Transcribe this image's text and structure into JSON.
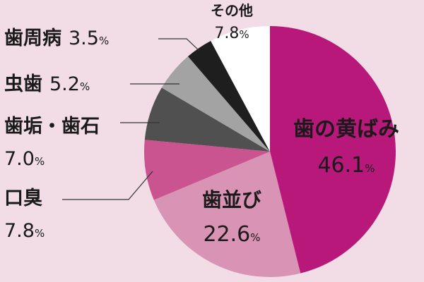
{
  "chart_data": {
    "type": "pie",
    "start_angle_deg": 0,
    "direction": "clockwise",
    "slices": [
      {
        "label": "歯の黄ばみ",
        "value": 46.1,
        "display": "46.1",
        "unit": "%",
        "color": "#b8187a"
      },
      {
        "label": "歯並び",
        "value": 22.6,
        "display": "22.6",
        "unit": "%",
        "color": "#d993b5"
      },
      {
        "label": "口臭",
        "value": 7.8,
        "display": "7.8",
        "unit": "%",
        "color": "#c95490"
      },
      {
        "label": "歯垢・歯石",
        "value": 7.0,
        "display": "7.0",
        "unit": "%",
        "color": "#505050"
      },
      {
        "label": "虫歯",
        "value": 5.2,
        "display": "5.2",
        "unit": "%",
        "color": "#a3a3a3"
      },
      {
        "label": "歯周病",
        "value": 3.5,
        "display": "3.5",
        "unit": "%",
        "color": "#1e1e1e"
      },
      {
        "label": "その他",
        "value": 7.8,
        "display": "7.8",
        "unit": "%",
        "color": "#ffffff"
      }
    ]
  }
}
